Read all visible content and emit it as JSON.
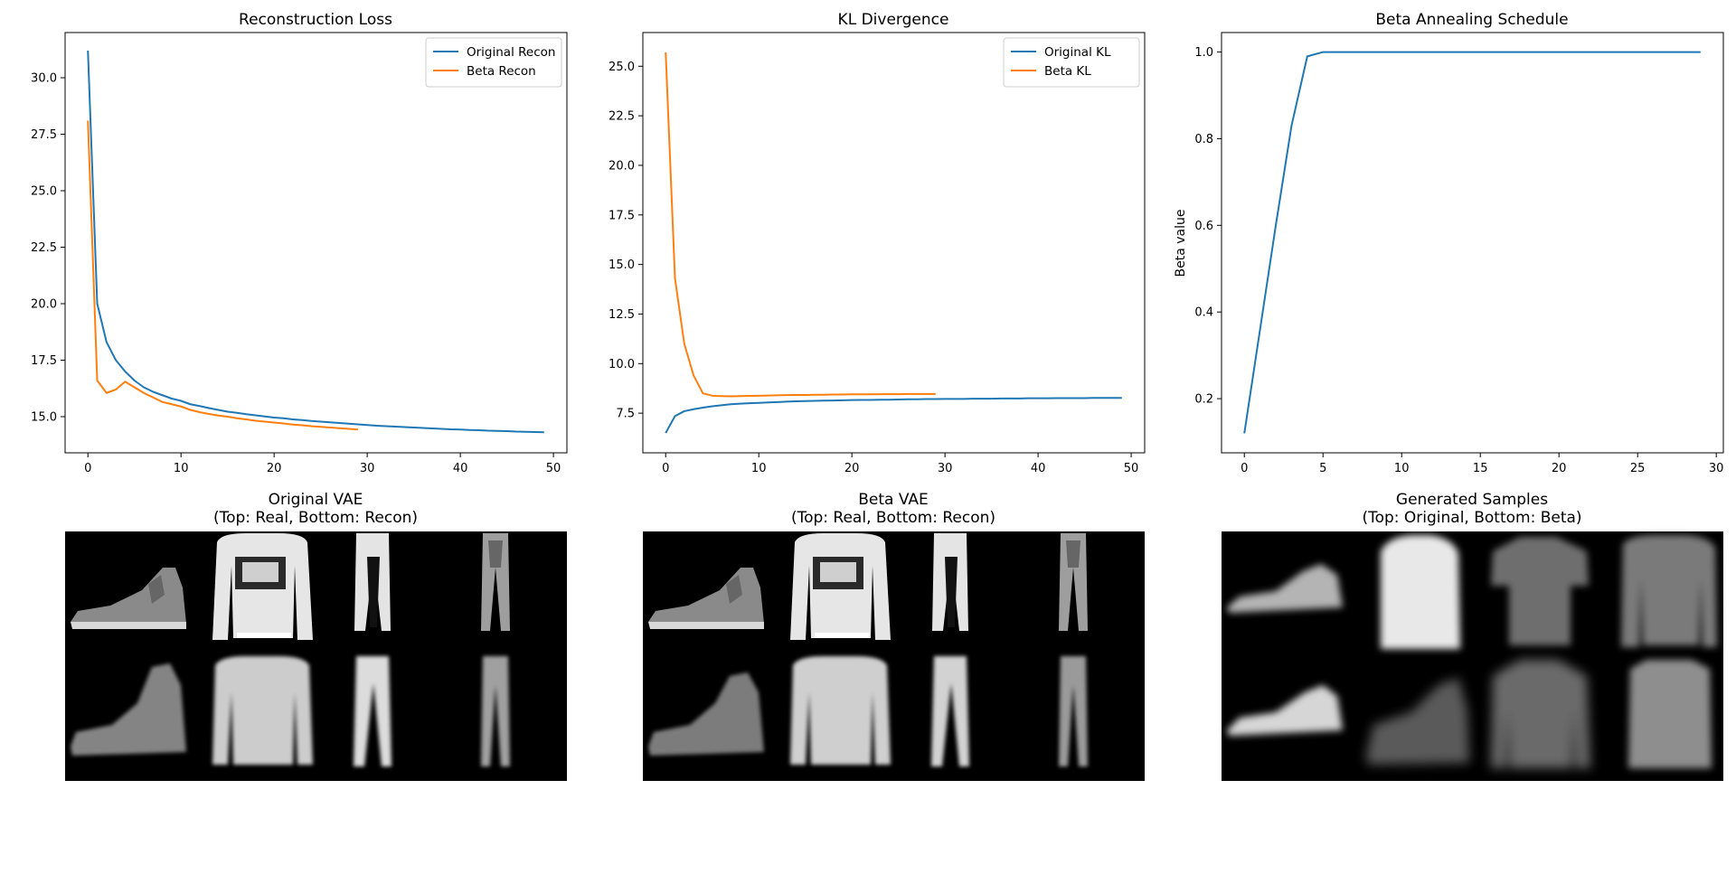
{
  "colors": {
    "series_blue": "#1f77b4",
    "series_orange": "#ff7f0e",
    "image_background": "#000000"
  },
  "chart_data": [
    {
      "id": "recon",
      "type": "line",
      "title": "Reconstruction Loss",
      "xlabel": "",
      "ylabel": "",
      "xlim": [
        -2.45,
        51.45
      ],
      "ylim": [
        13.4,
        32.0
      ],
      "xticks": [
        0,
        10,
        20,
        30,
        40,
        50
      ],
      "yticks": [
        15.0,
        17.5,
        20.0,
        22.5,
        25.0,
        27.5,
        30.0
      ],
      "legend": "top-right",
      "grid": false,
      "series": [
        {
          "name": "Original Recon",
          "color": "#1f77b4",
          "x": [
            0,
            1,
            2,
            3,
            4,
            5,
            6,
            7,
            8,
            9,
            10,
            11,
            12,
            13,
            14,
            15,
            16,
            17,
            18,
            19,
            20,
            21,
            22,
            23,
            24,
            25,
            26,
            27,
            28,
            29,
            30,
            31,
            32,
            33,
            34,
            35,
            36,
            37,
            38,
            39,
            40,
            41,
            42,
            43,
            44,
            45,
            46,
            47,
            48,
            49
          ],
          "y": [
            31.2,
            20.0,
            18.3,
            17.5,
            17.0,
            16.6,
            16.3,
            16.1,
            15.95,
            15.8,
            15.7,
            15.55,
            15.47,
            15.38,
            15.3,
            15.22,
            15.17,
            15.11,
            15.06,
            15.01,
            14.96,
            14.93,
            14.88,
            14.85,
            14.81,
            14.78,
            14.75,
            14.72,
            14.69,
            14.66,
            14.63,
            14.6,
            14.58,
            14.56,
            14.54,
            14.52,
            14.5,
            14.48,
            14.46,
            14.44,
            14.43,
            14.41,
            14.4,
            14.38,
            14.37,
            14.36,
            14.34,
            14.33,
            14.32,
            14.31
          ]
        },
        {
          "name": "Beta Recon",
          "color": "#ff7f0e",
          "x": [
            0,
            1,
            2,
            3,
            4,
            5,
            6,
            7,
            8,
            9,
            10,
            11,
            12,
            13,
            14,
            15,
            16,
            17,
            18,
            19,
            20,
            21,
            22,
            23,
            24,
            25,
            26,
            27,
            28,
            29
          ],
          "y": [
            28.1,
            16.6,
            16.05,
            16.2,
            16.55,
            16.3,
            16.05,
            15.85,
            15.65,
            15.55,
            15.45,
            15.3,
            15.2,
            15.12,
            15.05,
            15.0,
            14.93,
            14.88,
            14.82,
            14.78,
            14.74,
            14.7,
            14.65,
            14.62,
            14.58,
            14.55,
            14.52,
            14.49,
            14.46,
            14.43
          ]
        }
      ]
    },
    {
      "id": "kl",
      "type": "line",
      "title": "KL Divergence",
      "xlabel": "",
      "ylabel": "",
      "xlim": [
        -2.45,
        51.45
      ],
      "ylim": [
        5.5,
        26.7
      ],
      "xticks": [
        0,
        10,
        20,
        30,
        40,
        50
      ],
      "yticks": [
        7.5,
        10.0,
        12.5,
        15.0,
        17.5,
        20.0,
        22.5,
        25.0
      ],
      "legend": "top-right",
      "grid": false,
      "series": [
        {
          "name": "Original KL",
          "color": "#1f77b4",
          "x": [
            0,
            1,
            2,
            3,
            4,
            5,
            6,
            7,
            8,
            9,
            10,
            11,
            12,
            13,
            14,
            15,
            16,
            17,
            18,
            19,
            20,
            21,
            22,
            23,
            24,
            25,
            26,
            27,
            28,
            29,
            30,
            31,
            32,
            33,
            34,
            35,
            36,
            37,
            38,
            39,
            40,
            41,
            42,
            43,
            44,
            45,
            46,
            47,
            48,
            49
          ],
          "y": [
            6.5,
            7.35,
            7.6,
            7.7,
            7.78,
            7.85,
            7.9,
            7.95,
            7.98,
            8.0,
            8.02,
            8.04,
            8.06,
            8.08,
            8.1,
            8.11,
            8.12,
            8.13,
            8.14,
            8.15,
            8.16,
            8.17,
            8.17,
            8.18,
            8.18,
            8.19,
            8.2,
            8.2,
            8.21,
            8.21,
            8.22,
            8.22,
            8.22,
            8.23,
            8.23,
            8.23,
            8.24,
            8.24,
            8.24,
            8.25,
            8.25,
            8.25,
            8.26,
            8.26,
            8.26,
            8.26,
            8.27,
            8.27,
            8.27,
            8.27
          ]
        },
        {
          "name": "Beta KL",
          "color": "#ff7f0e",
          "x": [
            0,
            1,
            2,
            3,
            4,
            5,
            6,
            7,
            8,
            9,
            10,
            11,
            12,
            13,
            14,
            15,
            16,
            17,
            18,
            19,
            20,
            21,
            22,
            23,
            24,
            25,
            26,
            27,
            28,
            29
          ],
          "y": [
            25.7,
            14.3,
            11.0,
            9.4,
            8.5,
            8.38,
            8.36,
            8.35,
            8.36,
            8.37,
            8.38,
            8.39,
            8.4,
            8.41,
            8.42,
            8.42,
            8.43,
            8.43,
            8.44,
            8.44,
            8.45,
            8.45,
            8.45,
            8.46,
            8.46,
            8.46,
            8.47,
            8.47,
            8.47,
            8.47
          ]
        }
      ]
    },
    {
      "id": "beta",
      "type": "line",
      "title": "Beta Annealing Schedule",
      "xlabel": "",
      "ylabel": "Beta value",
      "xlim": [
        -1.45,
        30.45
      ],
      "ylim": [
        0.075,
        1.045
      ],
      "xticks": [
        0,
        5,
        10,
        15,
        20,
        25,
        30
      ],
      "yticks": [
        0.2,
        0.4,
        0.6,
        0.8,
        1.0
      ],
      "legend": "none",
      "grid": false,
      "series": [
        {
          "color": "#1f77b4",
          "x": [
            0,
            1,
            2,
            3,
            4,
            5,
            6,
            7,
            8,
            9,
            10,
            11,
            12,
            13,
            14,
            15,
            16,
            17,
            18,
            19,
            20,
            21,
            22,
            23,
            24,
            25,
            26,
            27,
            28,
            29
          ],
          "y": [
            0.12,
            0.36,
            0.6,
            0.83,
            0.99,
            1.0,
            1.0,
            1.0,
            1.0,
            1.0,
            1.0,
            1.0,
            1.0,
            1.0,
            1.0,
            1.0,
            1.0,
            1.0,
            1.0,
            1.0,
            1.0,
            1.0,
            1.0,
            1.0,
            1.0,
            1.0,
            1.0,
            1.0,
            1.0,
            1.0
          ]
        }
      ]
    }
  ],
  "images": [
    {
      "id": "orig",
      "title_line1": "Original VAE",
      "title_line2": "(Top: Real, Bottom: Recon)"
    },
    {
      "id": "betavae",
      "title_line1": "Beta VAE",
      "title_line2": "(Top: Real, Bottom: Recon)"
    },
    {
      "id": "gen",
      "title_line1": "Generated Samples",
      "title_line2": "(Top: Original, Bottom: Beta)"
    }
  ]
}
